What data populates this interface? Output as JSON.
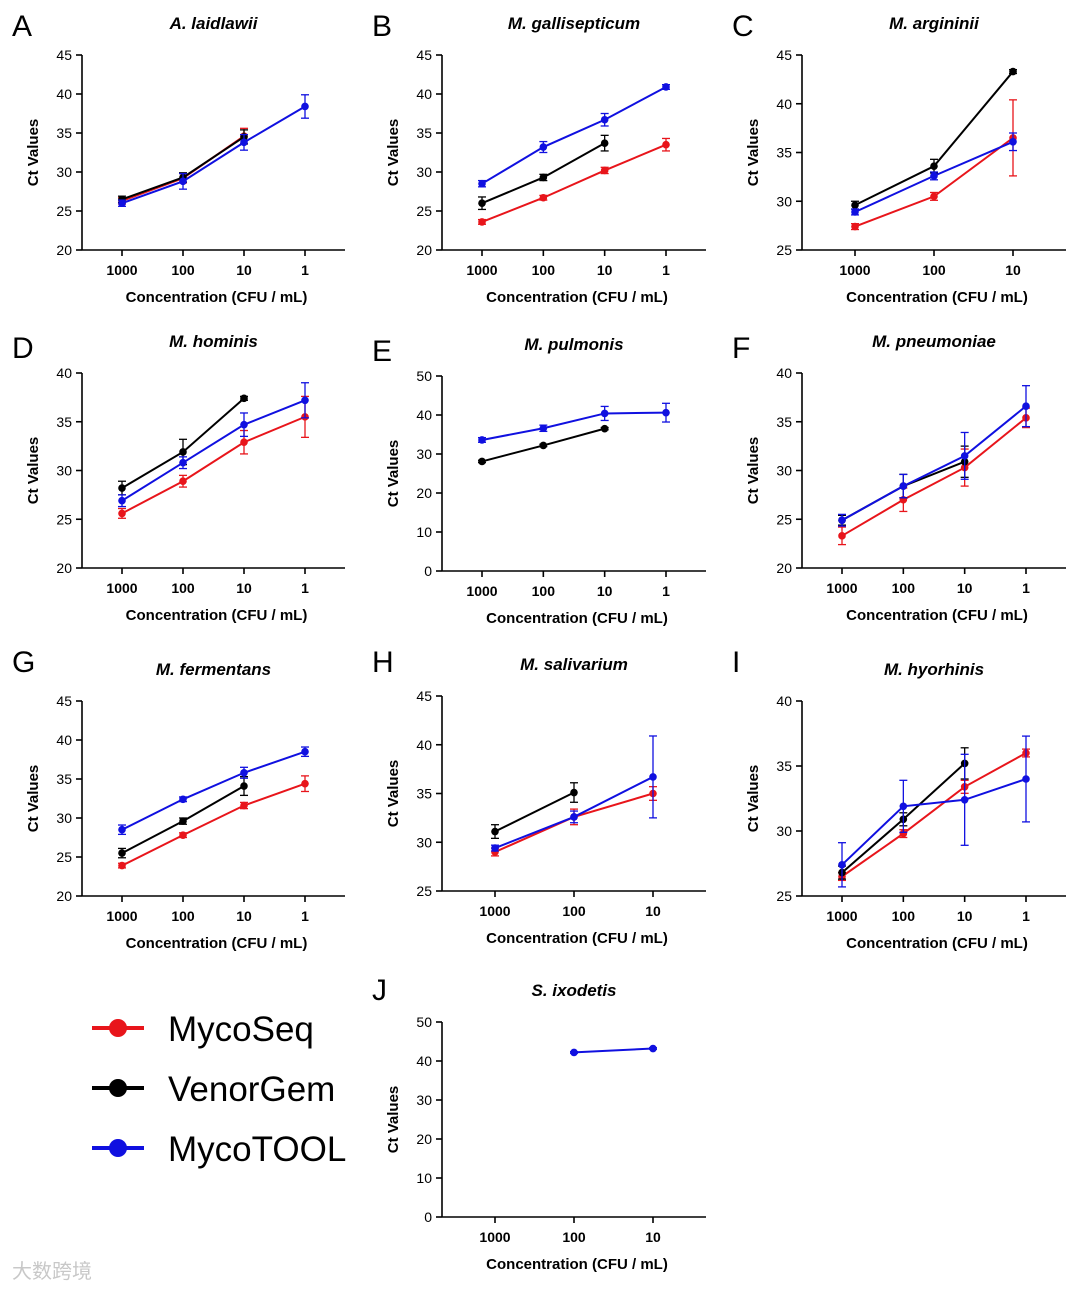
{
  "figure": {
    "legend": [
      {
        "name": "MycoSeq",
        "color": "#e8151b"
      },
      {
        "name": "VenorGem",
        "color": "#000000"
      },
      {
        "name": "MycoTOOL",
        "color": "#1010e0"
      }
    ],
    "watermark": "大数跨境"
  },
  "chart_data": [
    {
      "panel": "A",
      "title": "A. laidlawii",
      "type": "line",
      "xlabel": "Concentration (CFU / mL)",
      "ylabel": "Ct Values",
      "categories": [
        "1000",
        "100",
        "10",
        "1"
      ],
      "ylim": [
        20,
        45
      ],
      "yticks": [
        20,
        25,
        30,
        35,
        40,
        45
      ],
      "series": [
        {
          "name": "MycoSeq",
          "color": "#e8151b",
          "values": [
            26.3,
            29.2,
            34.6,
            null
          ],
          "errors": [
            0.4,
            0.6,
            1.0,
            null
          ]
        },
        {
          "name": "VenorGem",
          "color": "#000000",
          "values": [
            26.5,
            29.3,
            34.5,
            null
          ],
          "errors": [
            0.4,
            0.6,
            0.9,
            null
          ]
        },
        {
          "name": "MycoTOOL",
          "color": "#1010e0",
          "values": [
            26.0,
            28.8,
            33.8,
            38.4
          ],
          "errors": [
            0.4,
            1.0,
            1.0,
            1.5
          ]
        }
      ]
    },
    {
      "panel": "B",
      "title": "M. gallisepticum",
      "type": "line",
      "xlabel": "Concentration (CFU / mL)",
      "ylabel": "Ct Values",
      "categories": [
        "1000",
        "100",
        "10",
        "1"
      ],
      "ylim": [
        20,
        45
      ],
      "yticks": [
        20,
        25,
        30,
        35,
        40,
        45
      ],
      "series": [
        {
          "name": "MycoSeq",
          "color": "#e8151b",
          "values": [
            23.6,
            26.7,
            30.2,
            33.5
          ],
          "errors": [
            0.3,
            0.3,
            0.4,
            0.8
          ]
        },
        {
          "name": "VenorGem",
          "color": "#000000",
          "values": [
            26.0,
            29.3,
            33.7,
            null
          ],
          "errors": [
            0.8,
            0.4,
            1.0,
            null
          ]
        },
        {
          "name": "MycoTOOL",
          "color": "#1010e0",
          "values": [
            28.5,
            33.2,
            36.7,
            40.9
          ],
          "errors": [
            0.4,
            0.7,
            0.8,
            0.3
          ]
        }
      ]
    },
    {
      "panel": "C",
      "title": "M. argininii",
      "type": "line",
      "xlabel": "Concentration (CFU / mL)",
      "ylabel": "Ct Values",
      "categories": [
        "1000",
        "100",
        "10"
      ],
      "ylim": [
        25,
        45
      ],
      "yticks": [
        25,
        30,
        35,
        40,
        45
      ],
      "series": [
        {
          "name": "MycoSeq",
          "color": "#e8151b",
          "values": [
            27.4,
            30.5,
            36.5
          ],
          "errors": [
            0.3,
            0.4,
            3.9
          ]
        },
        {
          "name": "VenorGem",
          "color": "#000000",
          "values": [
            29.6,
            33.6,
            43.3
          ],
          "errors": [
            0.4,
            0.7,
            0.2
          ]
        },
        {
          "name": "MycoTOOL",
          "color": "#1010e0",
          "values": [
            28.9,
            32.6,
            36.1
          ],
          "errors": [
            0.3,
            0.4,
            0.9
          ]
        }
      ]
    },
    {
      "panel": "D",
      "title": "M. hominis",
      "type": "line",
      "xlabel": "Concentration (CFU / mL)",
      "ylabel": "Ct Values",
      "categories": [
        "1000",
        "100",
        "10",
        "1"
      ],
      "ylim": [
        20,
        40
      ],
      "yticks": [
        20,
        25,
        30,
        35,
        40
      ],
      "series": [
        {
          "name": "MycoSeq",
          "color": "#e8151b",
          "values": [
            25.6,
            28.9,
            32.9,
            35.5
          ],
          "errors": [
            0.5,
            0.6,
            1.2,
            2.1
          ]
        },
        {
          "name": "VenorGem",
          "color": "#000000",
          "values": [
            28.2,
            31.9,
            37.4,
            null
          ],
          "errors": [
            0.7,
            1.3,
            0.2,
            null
          ]
        },
        {
          "name": "MycoTOOL",
          "color": "#1010e0",
          "values": [
            26.9,
            30.8,
            34.7,
            37.2
          ],
          "errors": [
            0.6,
            0.6,
            1.2,
            1.8
          ]
        }
      ]
    },
    {
      "panel": "E",
      "title": "M. pulmonis",
      "type": "line",
      "xlabel": "Concentration (CFU / mL)",
      "ylabel": "Ct Values",
      "categories": [
        "1000",
        "100",
        "10",
        "1"
      ],
      "ylim": [
        0,
        50
      ],
      "yticks": [
        0,
        10,
        20,
        30,
        40,
        50
      ],
      "series": [
        {
          "name": "VenorGem",
          "color": "#000000",
          "values": [
            28.1,
            32.2,
            36.5,
            null
          ],
          "errors": [
            0.3,
            0.3,
            0.3,
            null
          ]
        },
        {
          "name": "MycoTOOL",
          "color": "#1010e0",
          "values": [
            33.6,
            36.6,
            40.4,
            40.6
          ],
          "errors": [
            0.6,
            0.8,
            1.8,
            2.4
          ]
        }
      ]
    },
    {
      "panel": "F",
      "title": "M. pneumoniae",
      "type": "line",
      "xlabel": "Concentration (CFU / mL)",
      "ylabel": "Ct Values",
      "categories": [
        "1000",
        "100",
        "10",
        "1"
      ],
      "ylim": [
        20,
        40
      ],
      "yticks": [
        20,
        25,
        30,
        35,
        40
      ],
      "series": [
        {
          "name": "MycoSeq",
          "color": "#e8151b",
          "values": [
            23.3,
            27.0,
            30.3,
            35.4
          ],
          "errors": [
            0.9,
            1.2,
            1.9,
            1.0
          ]
        },
        {
          "name": "VenorGem",
          "color": "#000000",
          "values": [
            24.9,
            28.4,
            30.9,
            null
          ],
          "errors": [
            0.5,
            1.2,
            1.6,
            null
          ]
        },
        {
          "name": "MycoTOOL",
          "color": "#1010e0",
          "values": [
            24.9,
            28.4,
            31.5,
            36.6
          ],
          "errors": [
            0.6,
            1.2,
            2.4,
            2.1
          ]
        }
      ]
    },
    {
      "panel": "G",
      "title": "M. fermentans",
      "type": "line",
      "xlabel": "Concentration (CFU / mL)",
      "ylabel": "Ct Values",
      "categories": [
        "1000",
        "100",
        "10",
        "1"
      ],
      "ylim": [
        20,
        45
      ],
      "yticks": [
        20,
        25,
        30,
        35,
        40,
        45
      ],
      "series": [
        {
          "name": "MycoSeq",
          "color": "#e8151b",
          "values": [
            23.9,
            27.8,
            31.6,
            34.4
          ],
          "errors": [
            0.3,
            0.3,
            0.4,
            1.0
          ]
        },
        {
          "name": "VenorGem",
          "color": "#000000",
          "values": [
            25.5,
            29.6,
            34.1,
            null
          ],
          "errors": [
            0.6,
            0.4,
            1.2,
            null
          ]
        },
        {
          "name": "MycoTOOL",
          "color": "#1010e0",
          "values": [
            28.5,
            32.4,
            35.8,
            38.5
          ],
          "errors": [
            0.6,
            0.3,
            0.7,
            0.6
          ]
        }
      ]
    },
    {
      "panel": "H",
      "title": "M. salivarium",
      "type": "line",
      "xlabel": "Concentration (CFU / mL)",
      "ylabel": "Ct Values",
      "categories": [
        "1000",
        "100",
        "10"
      ],
      "ylim": [
        25,
        45
      ],
      "yticks": [
        25,
        30,
        35,
        40,
        45
      ],
      "series": [
        {
          "name": "MycoSeq",
          "color": "#e8151b",
          "values": [
            29.0,
            32.6,
            35.0
          ],
          "errors": [
            0.4,
            0.8,
            0.7
          ]
        },
        {
          "name": "VenorGem",
          "color": "#000000",
          "values": [
            31.1,
            35.1,
            null
          ],
          "errors": [
            0.7,
            1.0,
            null
          ]
        },
        {
          "name": "MycoTOOL",
          "color": "#1010e0",
          "values": [
            29.4,
            32.6,
            36.7
          ],
          "errors": [
            0.3,
            0.6,
            4.2
          ]
        }
      ]
    },
    {
      "panel": "I",
      "title": "M. hyorhinis",
      "type": "line",
      "xlabel": "Concentration (CFU / mL)",
      "ylabel": "Ct Values",
      "categories": [
        "1000",
        "100",
        "10",
        "1"
      ],
      "ylim": [
        25,
        40
      ],
      "yticks": [
        25,
        30,
        35,
        40
      ],
      "series": [
        {
          "name": "MycoSeq",
          "color": "#e8151b",
          "values": [
            26.5,
            29.8,
            33.4,
            36.0
          ],
          "errors": [
            0.3,
            0.3,
            0.5,
            0.3
          ]
        },
        {
          "name": "VenorGem",
          "color": "#000000",
          "values": [
            26.8,
            30.9,
            35.2,
            null
          ],
          "errors": [
            0.5,
            0.5,
            1.2,
            null
          ]
        },
        {
          "name": "MycoTOOL",
          "color": "#1010e0",
          "values": [
            27.4,
            31.9,
            32.4,
            34.0
          ],
          "errors": [
            1.7,
            2.0,
            3.5,
            3.3
          ]
        }
      ]
    },
    {
      "panel": "J",
      "title": "S. ixodetis",
      "type": "line",
      "xlabel": "Concentration (CFU / mL)",
      "ylabel": "Ct Values",
      "categories": [
        "1000",
        "100",
        "10"
      ],
      "ylim": [
        0,
        50
      ],
      "yticks": [
        0,
        10,
        20,
        30,
        40,
        50
      ],
      "series": [
        {
          "name": "MycoTOOL",
          "color": "#1010e0",
          "values": [
            null,
            42.2,
            43.2
          ],
          "errors": [
            null,
            0.2,
            0.2
          ]
        }
      ]
    }
  ]
}
